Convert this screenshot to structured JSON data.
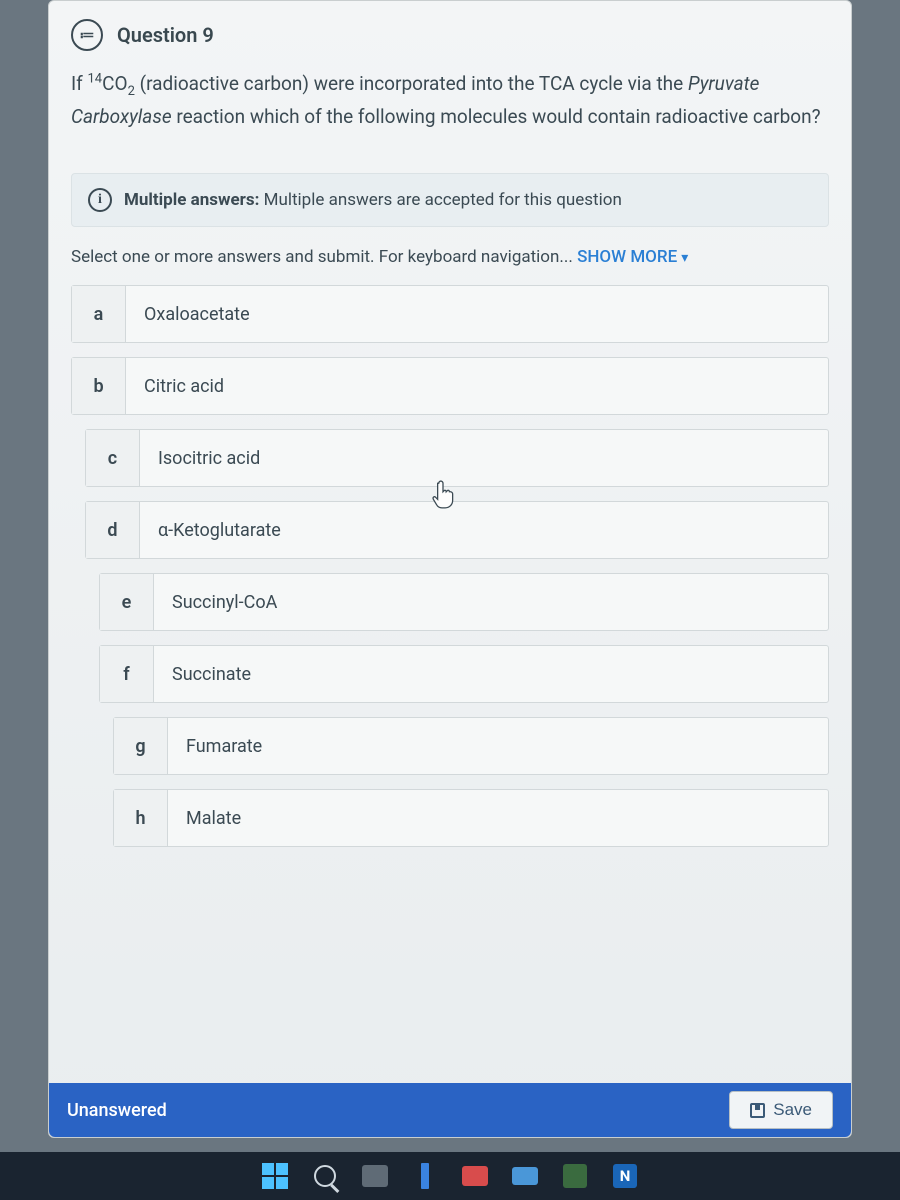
{
  "question": {
    "number_label": "Question 9",
    "stem_prefix": "If ",
    "isotope_sup": "14",
    "isotope_base": "CO",
    "isotope_sub": "2",
    "stem_mid": " (radioactive carbon) were incorporated into the TCA cycle via the ",
    "stem_italic": "Pyruvate Carboxylase",
    "stem_end": " reaction which of the following molecules would contain radioactive carbon?"
  },
  "info_banner": {
    "label": "Multiple answers:",
    "text": " Multiple answers are accepted for this question"
  },
  "instructions": {
    "text": "Select one or more answers and submit. For keyboard navigation... ",
    "show_more": "SHOW MORE"
  },
  "options": [
    {
      "letter": "a",
      "text": "Oxaloacetate",
      "indent": 0
    },
    {
      "letter": "b",
      "text": "Citric acid",
      "indent": 0
    },
    {
      "letter": "c",
      "text": "Isocitric acid",
      "indent": 1
    },
    {
      "letter": "d",
      "text": "α-Ketoglutarate",
      "indent": 1
    },
    {
      "letter": "e",
      "text": "Succinyl-CoA",
      "indent": 2
    },
    {
      "letter": "f",
      "text": "Succinate",
      "indent": 2
    },
    {
      "letter": "g",
      "text": "Fumarate",
      "indent": 3
    },
    {
      "letter": "h",
      "text": "Malate",
      "indent": 3
    }
  ],
  "status": {
    "text": "Unanswered",
    "save_label": "Save"
  },
  "colors": {
    "body_bg": "#6a7680",
    "card_bg_top": "#f3f5f6",
    "card_bg_bottom": "#e9edef",
    "text": "#3b4a53",
    "link": "#2a7fd4",
    "status_bar": "#2a63c4",
    "option_border": "#d2d8da",
    "taskbar": "#1a2430"
  }
}
